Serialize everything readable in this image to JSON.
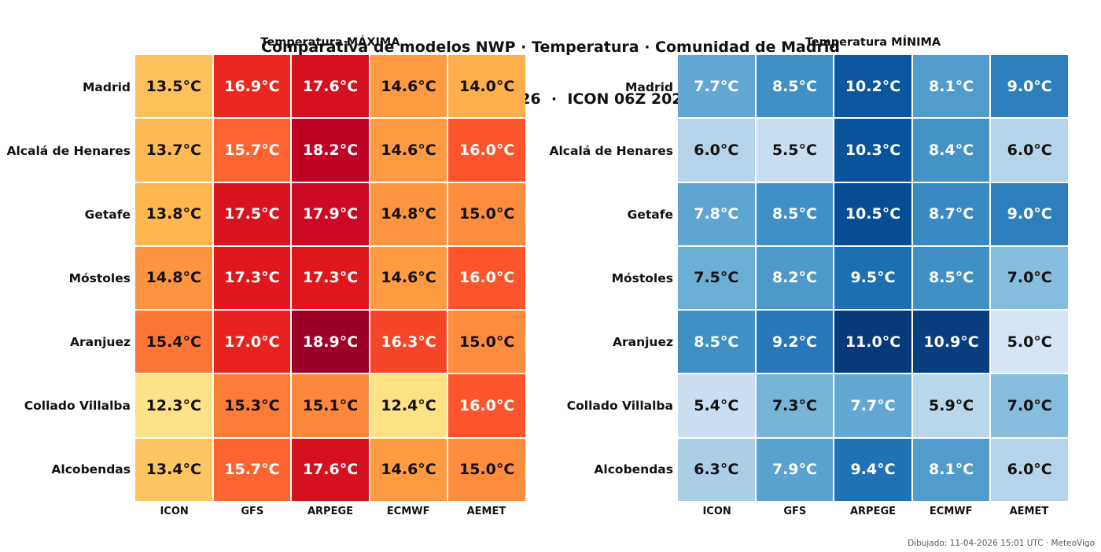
{
  "page": {
    "title_line1": "Comparativa de modelos NWP · Temperatura · Comunidad de Madrid",
    "title_line2": "domingo 12-04-2026  ·  ICON 06Z 20260411",
    "footer": "Dibujado: 11-04-2026 15:01 UTC · MeteoVigo"
  },
  "chart_data": [
    {
      "type": "heatmap",
      "title": "Temperatura MÁXIMA",
      "unit": "°C",
      "rows": [
        "Madrid",
        "Alcalá de Henares",
        "Getafe",
        "Móstoles",
        "Aranjuez",
        "Collado Villalba",
        "Alcobendas"
      ],
      "columns": [
        "ICON",
        "GFS",
        "ARPEGE",
        "ECMWF",
        "AEMET"
      ],
      "values": [
        [
          13.5,
          16.9,
          17.6,
          14.6,
          14.0
        ],
        [
          13.7,
          15.7,
          18.2,
          14.6,
          16.0
        ],
        [
          13.8,
          17.5,
          17.9,
          14.8,
          15.0
        ],
        [
          14.8,
          17.3,
          17.3,
          14.6,
          16.0
        ],
        [
          15.4,
          17.0,
          18.9,
          16.3,
          15.0
        ],
        [
          12.3,
          15.3,
          15.1,
          12.4,
          16.0
        ],
        [
          13.4,
          15.7,
          17.6,
          14.6,
          15.0
        ]
      ],
      "value_range_shown": [
        12.3,
        18.9
      ],
      "colormap": {
        "name": "YlOrRd",
        "stops": [
          "#ffffcc",
          "#ffeda0",
          "#fed976",
          "#feb24c",
          "#fd8d3c",
          "#fc4e2a",
          "#e31a1c",
          "#bd0026",
          "#800026"
        ],
        "vmin": 10.6,
        "vmax": 19.4
      },
      "white_text_threshold": 15.5,
      "text_colors": {
        "dark": "#111111",
        "light": "#ffffff"
      }
    },
    {
      "type": "heatmap",
      "title": "Temperatura MÍNIMA",
      "unit": "°C",
      "rows": [
        "Madrid",
        "Alcalá de Henares",
        "Getafe",
        "Móstoles",
        "Aranjuez",
        "Collado Villalba",
        "Alcobendas"
      ],
      "columns": [
        "ICON",
        "GFS",
        "ARPEGE",
        "ECMWF",
        "AEMET"
      ],
      "values": [
        [
          7.7,
          8.5,
          10.2,
          8.1,
          9.0
        ],
        [
          6.0,
          5.5,
          10.3,
          8.4,
          6.0
        ],
        [
          7.8,
          8.5,
          10.5,
          8.7,
          9.0
        ],
        [
          7.5,
          8.2,
          9.5,
          8.5,
          7.0
        ],
        [
          8.5,
          9.2,
          11.0,
          10.9,
          5.0
        ],
        [
          5.4,
          7.3,
          7.7,
          5.9,
          7.0
        ],
        [
          6.3,
          7.9,
          9.4,
          8.1,
          6.0
        ]
      ],
      "value_range_shown": [
        5.0,
        11.0
      ],
      "colormap": {
        "name": "Blues",
        "stops": [
          "#f7fbff",
          "#deebf7",
          "#c6dbef",
          "#9ecae1",
          "#6baed6",
          "#4292c6",
          "#2171b5",
          "#08519c",
          "#08306b"
        ],
        "vmin": 3.7,
        "vmax": 11.3
      },
      "white_text_threshold": 7.6,
      "text_colors": {
        "dark": "#111111",
        "light": "#ffffff"
      }
    }
  ]
}
